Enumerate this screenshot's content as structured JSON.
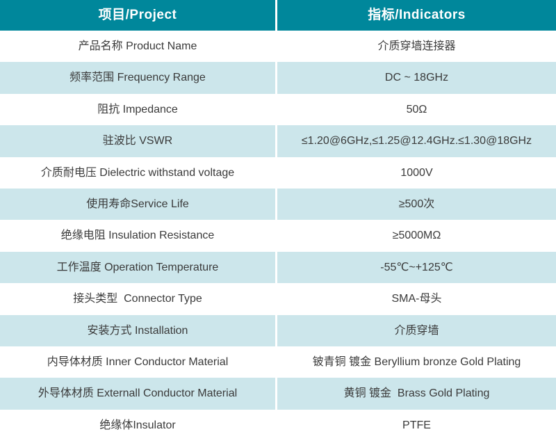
{
  "table": {
    "header": {
      "project_label": "项目/Project",
      "indicators_label": "指标/Indicators"
    },
    "rows": [
      {
        "project": "产品名称 Product Name",
        "indicator": "介质穿墙连接器"
      },
      {
        "project": "频率范围 Frequency Range",
        "indicator": "DC ~ 18GHz"
      },
      {
        "project": "阻抗 Impedance",
        "indicator": "50Ω"
      },
      {
        "project": "驻波比 VSWR",
        "indicator": "≤1.20@6GHz,≤1.25@12.4GHz.≤1.30@18GHz"
      },
      {
        "project": "介质耐电压 Dielectric withstand voltage",
        "indicator": "1000V"
      },
      {
        "project": "使用寿命Service Life",
        "indicator": "≥500次"
      },
      {
        "project": "绝缘电阻 Insulation Resistance",
        "indicator": "≥5000MΩ"
      },
      {
        "project": "工作温度 Operation Temperature",
        "indicator": "-55℃~+125℃"
      },
      {
        "project": "接头类型  Connector Type",
        "indicator": "SMA-母头"
      },
      {
        "project": "安装方式 Installation",
        "indicator": "介质穿墙"
      },
      {
        "project": "内导体材质 Inner Conductor Material",
        "indicator": "铍青铜 镀金 Beryllium bronze Gold Plating"
      },
      {
        "project": "外导体材质 Externall Conductor Material",
        "indicator": "黄铜 镀金  Brass Gold Plating"
      },
      {
        "project": "绝缘体Insulator",
        "indicator": "PTFE"
      }
    ]
  },
  "colors": {
    "header_bg": "#00879b",
    "header_text": "#ffffff",
    "row_bg": "#ffffff",
    "row_alt_bg": "#cce6eb",
    "body_text": "#3a3a3a",
    "divider": "#ffffff"
  }
}
